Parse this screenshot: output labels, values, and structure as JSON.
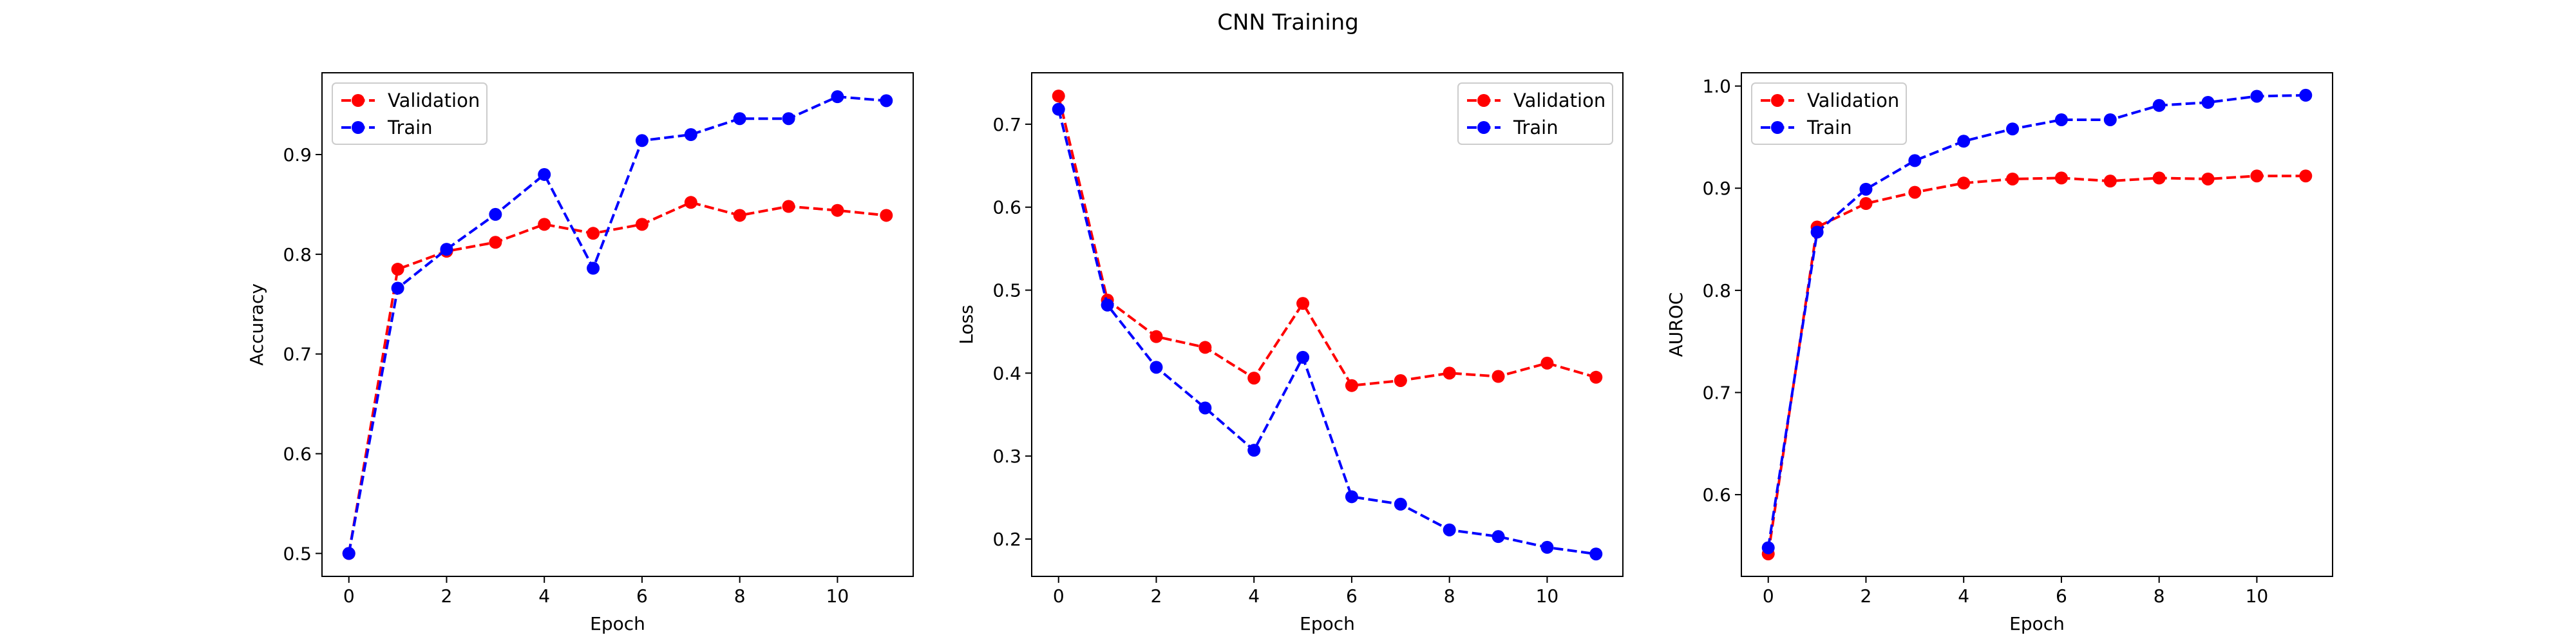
{
  "figure": {
    "title": "CNN Training"
  },
  "chart_data": [
    {
      "type": "line",
      "title": "",
      "xlabel": "Epoch",
      "ylabel": "Accuracy",
      "xlim": [
        -0.55,
        11.55
      ],
      "ylim": [
        0.477,
        0.982
      ],
      "xticks": [
        0,
        2,
        4,
        6,
        8,
        10
      ],
      "yticks": [
        0.5,
        0.6,
        0.7,
        0.8,
        0.9
      ],
      "grid": false,
      "legend": "upper-left",
      "x": [
        0,
        1,
        2,
        3,
        4,
        5,
        6,
        7,
        8,
        9,
        10,
        11
      ],
      "series": [
        {
          "name": "Validation",
          "color": "#ff0000",
          "marker": "circle",
          "linestyle": "dashed",
          "values": [
            0.5,
            0.785,
            0.803,
            0.812,
            0.83,
            0.821,
            0.83,
            0.852,
            0.839,
            0.848,
            0.844,
            0.839
          ]
        },
        {
          "name": "Train",
          "color": "#0000ff",
          "marker": "circle",
          "linestyle": "dashed",
          "values": [
            0.5,
            0.766,
            0.805,
            0.84,
            0.88,
            0.786,
            0.914,
            0.92,
            0.936,
            0.936,
            0.958,
            0.954
          ]
        }
      ]
    },
    {
      "type": "line",
      "title": "",
      "xlabel": "Epoch",
      "ylabel": "Loss",
      "xlim": [
        -0.55,
        11.55
      ],
      "ylim": [
        0.155,
        0.762
      ],
      "xticks": [
        0,
        2,
        4,
        6,
        8,
        10
      ],
      "yticks": [
        0.2,
        0.3,
        0.4,
        0.5,
        0.6,
        0.7
      ],
      "grid": false,
      "legend": "upper-right",
      "x": [
        0,
        1,
        2,
        3,
        4,
        5,
        6,
        7,
        8,
        9,
        10,
        11
      ],
      "series": [
        {
          "name": "Validation",
          "color": "#ff0000",
          "marker": "circle",
          "linestyle": "dashed",
          "values": [
            0.734,
            0.488,
            0.444,
            0.431,
            0.394,
            0.484,
            0.385,
            0.391,
            0.4,
            0.396,
            0.412,
            0.395
          ]
        },
        {
          "name": "Train",
          "color": "#0000ff",
          "marker": "circle",
          "linestyle": "dashed",
          "values": [
            0.718,
            0.482,
            0.407,
            0.358,
            0.307,
            0.419,
            0.251,
            0.242,
            0.211,
            0.203,
            0.19,
            0.182
          ]
        }
      ]
    },
    {
      "type": "line",
      "title": "",
      "xlabel": "Epoch",
      "ylabel": "AUROC",
      "xlim": [
        -0.55,
        11.55
      ],
      "ylim": [
        0.52,
        1.013
      ],
      "xticks": [
        0,
        2,
        4,
        6,
        8,
        10
      ],
      "yticks": [
        0.6,
        0.7,
        0.8,
        0.9,
        1.0
      ],
      "grid": false,
      "legend": "upper-left",
      "x": [
        0,
        1,
        2,
        3,
        4,
        5,
        6,
        7,
        8,
        9,
        10,
        11
      ],
      "series": [
        {
          "name": "Validation",
          "color": "#ff0000",
          "marker": "circle",
          "linestyle": "dashed",
          "values": [
            0.542,
            0.862,
            0.885,
            0.896,
            0.905,
            0.909,
            0.91,
            0.907,
            0.91,
            0.909,
            0.912,
            0.912
          ]
        },
        {
          "name": "Train",
          "color": "#0000ff",
          "marker": "circle",
          "linestyle": "dashed",
          "values": [
            0.548,
            0.857,
            0.899,
            0.927,
            0.946,
            0.958,
            0.967,
            0.967,
            0.981,
            0.984,
            0.99,
            0.991
          ]
        }
      ]
    }
  ]
}
